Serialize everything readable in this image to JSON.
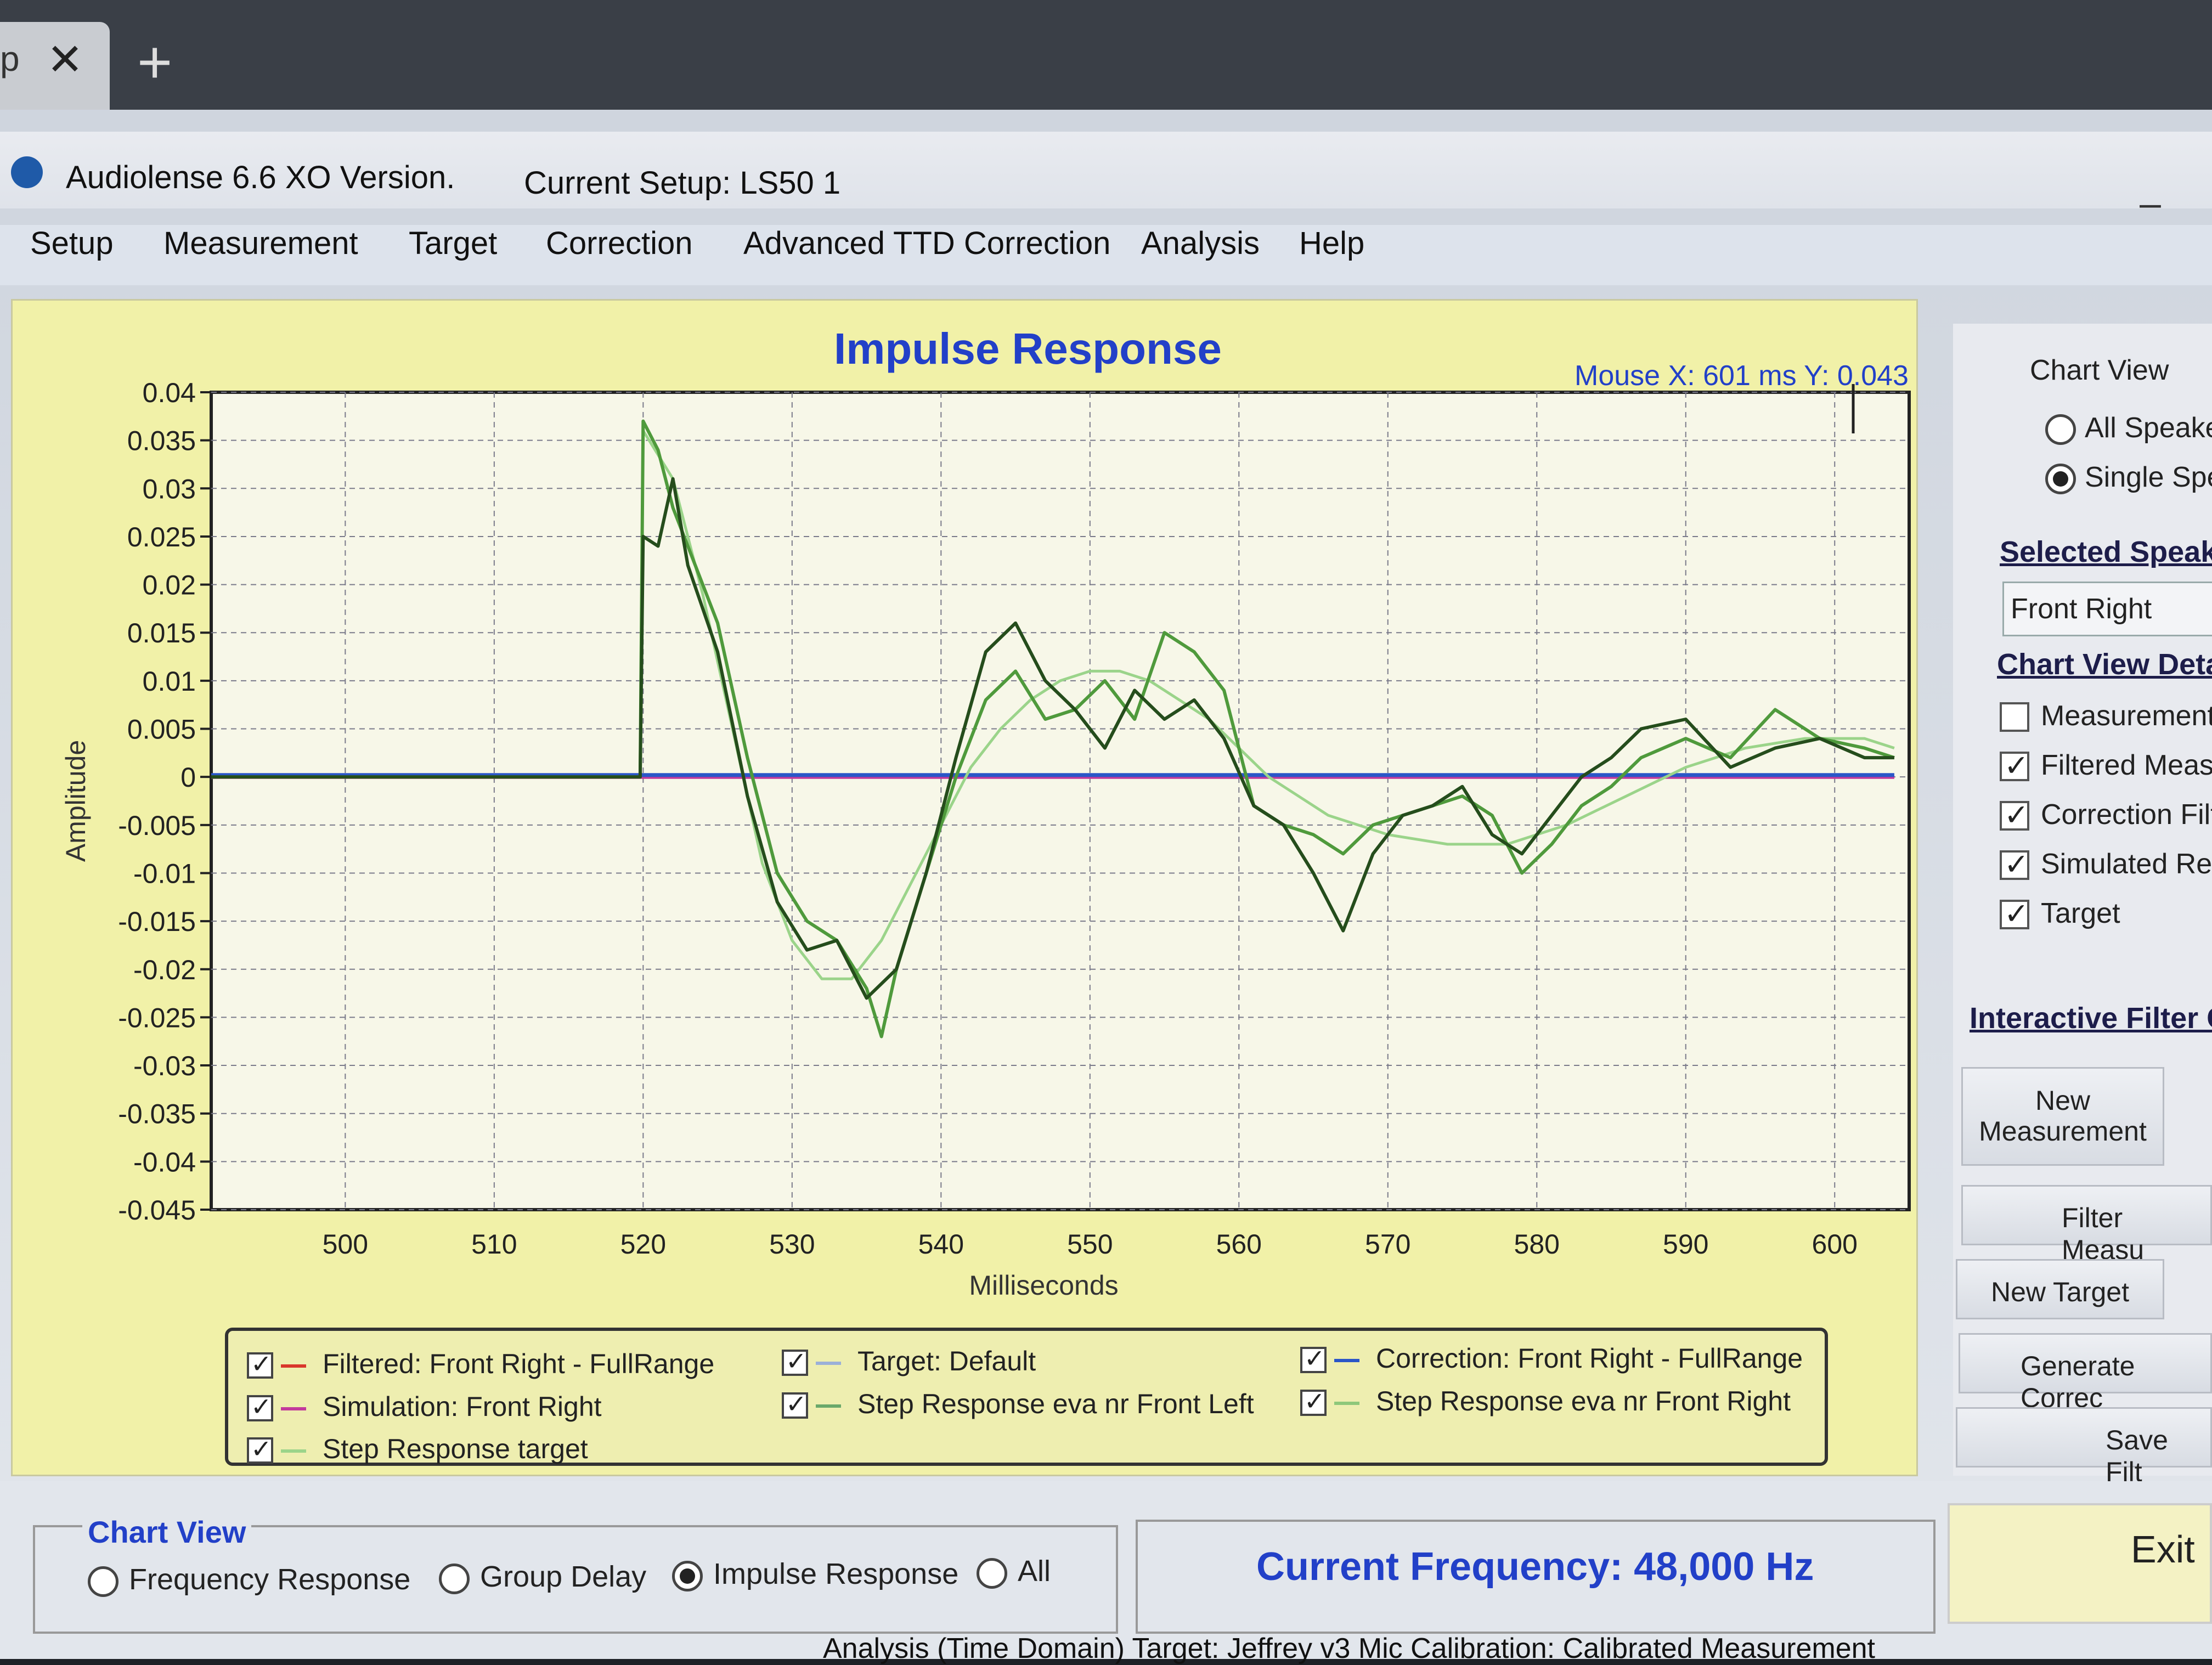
{
  "browser": {
    "tab_text": "p",
    "close_glyph": "✕",
    "new_tab_glyph": "+"
  },
  "window": {
    "app_title": "Audiolense 6.6 XO Version.",
    "setup_title": "Current Setup: LS50 1",
    "minimize_glyph": "–"
  },
  "menu": [
    "Setup",
    "Measurement",
    "Target",
    "Correction",
    "Advanced TTD Correction",
    "Analysis",
    "Help"
  ],
  "chart": {
    "title": "Impulse Response",
    "mouse_readout": "Mouse X: 601 ms   Y: 0.043",
    "legend": [
      {
        "label": "Filtered: Front Right - FullRange",
        "color": "#d9362b"
      },
      {
        "label": "Simulation: Front Right",
        "color": "#c23a9c"
      },
      {
        "label": "Step Response target",
        "color": "#9bd48a"
      },
      {
        "label": "Target: Default",
        "color": "#9bb0d8"
      },
      {
        "label": "Step Response eva nr Front Left",
        "color": "#6aa86a"
      },
      {
        "label": "Correction: Front Right - FullRange",
        "color": "#2a56c8"
      },
      {
        "label": "Step Response eva nr Front Right",
        "color": "#8ec87a"
      }
    ]
  },
  "chart_data": {
    "type": "line",
    "title": "Impulse Response",
    "xlabel": "Milliseconds",
    "ylabel": "Amplitude",
    "xlim": [
      491,
      605
    ],
    "ylim": [
      -0.045,
      0.04
    ],
    "xticks": [
      "500",
      "510",
      "520",
      "530",
      "540",
      "550",
      "560",
      "570",
      "580",
      "590",
      "600"
    ],
    "yticks": [
      "0.04",
      "0.035",
      "0.03",
      "0.025",
      "0.02",
      "0.015",
      "0.01",
      "0.005",
      "0",
      "-0.005",
      "-0.01",
      "-0.015",
      "-0.02",
      "-0.025",
      "-0.03",
      "-0.035",
      "-0.04",
      "-0.045"
    ],
    "grid": true,
    "series": [
      {
        "name": "Step Response eva nr Front Right",
        "color": "#4f9a3c",
        "x": [
          491,
          519.8,
          520,
          521,
          522,
          523,
          525,
          527,
          529,
          531,
          533,
          535,
          536,
          537,
          539,
          541,
          543,
          545,
          547,
          549,
          551,
          553,
          555,
          557,
          559,
          561,
          563,
          565,
          567,
          569,
          571,
          573,
          575,
          577,
          579,
          581,
          583,
          585,
          587,
          590,
          593,
          596,
          599,
          602,
          604
        ],
        "y": [
          0,
          0,
          0.037,
          0.034,
          0.028,
          0.024,
          0.016,
          0.002,
          -0.01,
          -0.015,
          -0.017,
          -0.022,
          -0.027,
          -0.02,
          -0.01,
          0,
          0.008,
          0.011,
          0.006,
          0.007,
          0.01,
          0.006,
          0.015,
          0.013,
          0.009,
          -0.003,
          -0.005,
          -0.006,
          -0.008,
          -0.005,
          -0.004,
          -0.003,
          -0.002,
          -0.004,
          -0.01,
          -0.007,
          -0.003,
          -0.001,
          0.002,
          0.004,
          0.002,
          0.007,
          0.004,
          0.003,
          0.002
        ]
      },
      {
        "name": "Step Response eva nr Front Left",
        "color": "#254d1c",
        "x": [
          491,
          519.8,
          520,
          521,
          522,
          523,
          525,
          527,
          529,
          531,
          533,
          535,
          537,
          539,
          541,
          543,
          545,
          547,
          549,
          551,
          553,
          555,
          557,
          559,
          561,
          563,
          565,
          567,
          569,
          571,
          573,
          575,
          577,
          579,
          581,
          583,
          585,
          587,
          590,
          593,
          596,
          599,
          602,
          604
        ],
        "y": [
          0,
          0,
          0.025,
          0.024,
          0.031,
          0.022,
          0.013,
          -0.002,
          -0.013,
          -0.018,
          -0.017,
          -0.023,
          -0.02,
          -0.01,
          0.002,
          0.013,
          0.016,
          0.01,
          0.007,
          0.003,
          0.009,
          0.006,
          0.008,
          0.004,
          -0.003,
          -0.005,
          -0.01,
          -0.016,
          -0.008,
          -0.004,
          -0.003,
          -0.001,
          -0.006,
          -0.008,
          -0.004,
          0,
          0.002,
          0.005,
          0.006,
          0.001,
          0.003,
          0.004,
          0.002,
          0.002
        ]
      },
      {
        "name": "Step Response target",
        "color": "#9bd48a",
        "x": [
          491,
          519.8,
          520,
          522,
          524,
          526,
          528,
          530,
          532,
          534,
          536,
          538,
          540,
          542,
          544,
          546,
          548,
          550,
          552,
          554,
          556,
          558,
          560,
          562,
          564,
          566,
          568,
          570,
          574,
          578,
          582,
          586,
          590,
          594,
          598,
          602,
          604
        ],
        "y": [
          0,
          0,
          0.036,
          0.031,
          0.019,
          0.005,
          -0.009,
          -0.017,
          -0.021,
          -0.021,
          -0.017,
          -0.011,
          -0.005,
          0.001,
          0.005,
          0.008,
          0.01,
          0.011,
          0.011,
          0.01,
          0.008,
          0.006,
          0.003,
          0,
          -0.002,
          -0.004,
          -0.005,
          -0.006,
          -0.007,
          -0.007,
          -0.005,
          -0.002,
          0.001,
          0.003,
          0.004,
          0.004,
          0.003
        ]
      },
      {
        "name": "Simulation: Front Right",
        "color": "#c23a9c",
        "x": [
          491,
          604
        ],
        "y": [
          0,
          0
        ]
      },
      {
        "name": "Correction: Front Right - FullRange",
        "color": "#2a56c8",
        "x": [
          491,
          604
        ],
        "y": [
          0.0002,
          0.0002
        ]
      }
    ]
  },
  "right_panel": {
    "chart_view_label": "Chart View",
    "radios": [
      {
        "label": "All Speake",
        "selected": false
      },
      {
        "label": "Single Spe",
        "selected": true
      }
    ],
    "selected_speaker_label": "Selected Speak",
    "selected_speaker_value": "Front Right",
    "details_label": "Chart View Deta",
    "checkboxes": [
      {
        "label": "Measurement",
        "checked": false
      },
      {
        "label": "Filtered Measu",
        "checked": true
      },
      {
        "label": "Correction Filt",
        "checked": true
      },
      {
        "label": "Simulated Res",
        "checked": true
      },
      {
        "label": "Target",
        "checked": true
      }
    ],
    "interactive_label": "Interactive Filter C",
    "buttons": {
      "new_measurement": "New Measurement",
      "filter_measure": "Filter Measu",
      "new_target": "New Target",
      "generate_correction": "Generate Correc",
      "save_filter": "Save Filt"
    }
  },
  "bottom": {
    "chart_view_label": "Chart View",
    "options": [
      {
        "label": "Frequency Response",
        "selected": false
      },
      {
        "label": "Group Delay",
        "selected": false
      },
      {
        "label": "Impulse Response",
        "selected": true
      },
      {
        "label": "All",
        "selected": false
      }
    ],
    "current_frequency": "Current Frequency: 48,000 Hz",
    "exit_label": "Exit",
    "status_text": "Analysis (Time Domain)  Target:  Jeffrey v3  Mic Calibration:  Calibrated Measurement"
  }
}
